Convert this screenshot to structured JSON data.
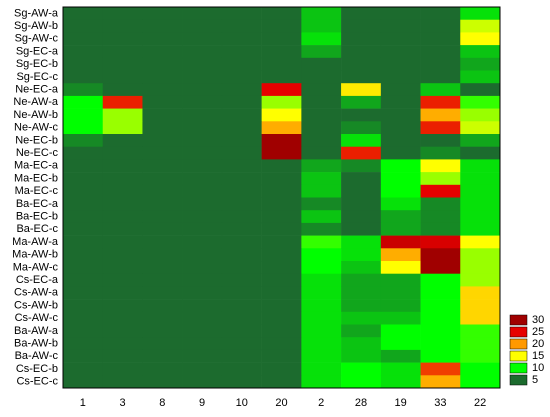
{
  "chart_data": {
    "type": "heatmap",
    "x_categories": [
      "1",
      "3",
      "8",
      "9",
      "10",
      "20",
      "2",
      "28",
      "19",
      "33",
      "22"
    ],
    "y_categories": [
      "Sg-AW-a",
      "Sg-AW-b",
      "Sg-AW-c",
      "Sg-EC-a",
      "Sg-EC-b",
      "Sg-EC-c",
      "Ne-EC-a",
      "Ne-AW-a",
      "Ne-AW-b",
      "Ne-AW-c",
      "Ne-EC-b",
      "Ne-EC-c",
      "Ma-EC-a",
      "Ma-EC-b",
      "Ma-EC-c",
      "Ba-EC-a",
      "Ba-EC-b",
      "Ba-EC-c",
      "Ma-AW-a",
      "Ma-AW-b",
      "Ma-AW-c",
      "Cs-EC-a",
      "Cs-AW-a",
      "Cs-AW-b",
      "Cs-AW-c",
      "Ba-AW-a",
      "Ba-AW-b",
      "Ba-AW-c",
      "Cs-EC-b",
      "Cs-EC-c"
    ],
    "values": [
      [
        3,
        3,
        3,
        3,
        3,
        3,
        8,
        3,
        3,
        4,
        9
      ],
      [
        3,
        3,
        3,
        3,
        3,
        3,
        8,
        3,
        3,
        4,
        14
      ],
      [
        3,
        3,
        3,
        3,
        3,
        3,
        9,
        3,
        3,
        4,
        15
      ],
      [
        3,
        3,
        3,
        3,
        3,
        3,
        7,
        3,
        3,
        3,
        8
      ],
      [
        3,
        3,
        3,
        3,
        3,
        3,
        3,
        3,
        3,
        3,
        7
      ],
      [
        3,
        3,
        3,
        3,
        3,
        3,
        3,
        3,
        3,
        3,
        8
      ],
      [
        6,
        3,
        3,
        3,
        5,
        25,
        4,
        16,
        3,
        8,
        5
      ],
      [
        10,
        24,
        3,
        3,
        4,
        13,
        3,
        7,
        3,
        24,
        11
      ],
      [
        10,
        13,
        3,
        3,
        4,
        15,
        3,
        5,
        3,
        19,
        13
      ],
      [
        10,
        13,
        3,
        3,
        4,
        19,
        3,
        6,
        3,
        24,
        14
      ],
      [
        6,
        5,
        3,
        3,
        3,
        30,
        3,
        9,
        3,
        5,
        7
      ],
      [
        4,
        4,
        3,
        4,
        3,
        30,
        3,
        24,
        3,
        6,
        5
      ],
      [
        3,
        3,
        3,
        3,
        3,
        3,
        7,
        6,
        10,
        15,
        9
      ],
      [
        3,
        3,
        3,
        3,
        3,
        3,
        8,
        5,
        10,
        13,
        9
      ],
      [
        3,
        3,
        3,
        3,
        3,
        3,
        8,
        5,
        10,
        25,
        9
      ],
      [
        3,
        3,
        3,
        3,
        3,
        3,
        6,
        5,
        9,
        6,
        9
      ],
      [
        3,
        3,
        3,
        3,
        3,
        3,
        8,
        5,
        7,
        6,
        9
      ],
      [
        3,
        3,
        3,
        3,
        3,
        3,
        6,
        5,
        7,
        6,
        9
      ],
      [
        3,
        3,
        3,
        3,
        3,
        4,
        11,
        9,
        27,
        26,
        15
      ],
      [
        3,
        3,
        3,
        3,
        3,
        3,
        10,
        9,
        19,
        30,
        13
      ],
      [
        3,
        3,
        3,
        3,
        3,
        3,
        10,
        8,
        15,
        30,
        13
      ],
      [
        3,
        3,
        3,
        4,
        3,
        3,
        9,
        7,
        7,
        10,
        13
      ],
      [
        3,
        3,
        3,
        4,
        3,
        3,
        9,
        7,
        7,
        10,
        17
      ],
      [
        3,
        3,
        3,
        4,
        3,
        3,
        9,
        7,
        7,
        10,
        17
      ],
      [
        3,
        3,
        3,
        4,
        3,
        3,
        9,
        8,
        8,
        10,
        17
      ],
      [
        3,
        3,
        3,
        4,
        4,
        3,
        9,
        7,
        10,
        10,
        11
      ],
      [
        3,
        3,
        3,
        4,
        3,
        3,
        9,
        8,
        10,
        10,
        11
      ],
      [
        3,
        3,
        3,
        4,
        5,
        3,
        9,
        8,
        7,
        10,
        11
      ],
      [
        3,
        3,
        3,
        4,
        3,
        3,
        9,
        10,
        9,
        23,
        10
      ],
      [
        3,
        3,
        3,
        4,
        3,
        3,
        9,
        10,
        9,
        19,
        10
      ]
    ],
    "legend": {
      "values": [
        30,
        25,
        20,
        15,
        10,
        5
      ],
      "colors": [
        "#a00000",
        "#e60000",
        "#ff9900",
        "#ffff00",
        "#00ff00",
        "#1c6b2e"
      ]
    }
  }
}
